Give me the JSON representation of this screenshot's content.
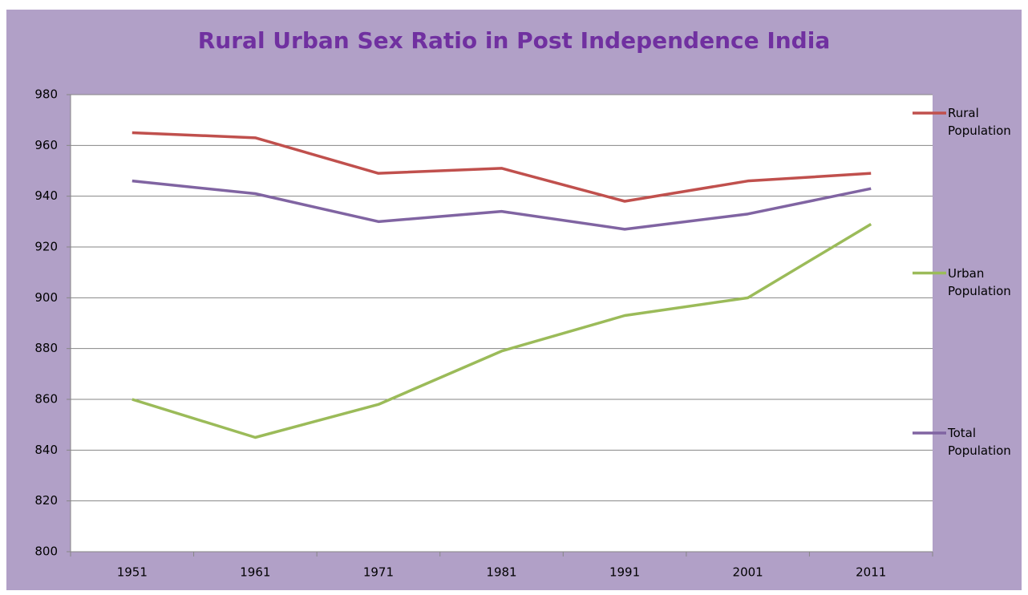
{
  "chart_data": {
    "type": "line",
    "title": "Rural Urban Sex Ratio in Post Independence India",
    "categories": [
      "1951",
      "1961",
      "1971",
      "1981",
      "1991",
      "2001",
      "2011"
    ],
    "series": [
      {
        "name": "Rural Population",
        "color": "#c0504d",
        "values": [
          965,
          963,
          949,
          951,
          938,
          946,
          949
        ]
      },
      {
        "name": "Urban Population",
        "color": "#9bbb59",
        "values": [
          860,
          845,
          858,
          879,
          893,
          900,
          929
        ]
      },
      {
        "name": "Total Population",
        "color": "#8064a2",
        "values": [
          946,
          941,
          930,
          934,
          927,
          933,
          943
        ]
      }
    ],
    "ylim": [
      800,
      980
    ],
    "yticks": [
      800,
      820,
      840,
      860,
      880,
      900,
      920,
      940,
      960,
      980
    ],
    "grid": true,
    "legend": "right"
  }
}
